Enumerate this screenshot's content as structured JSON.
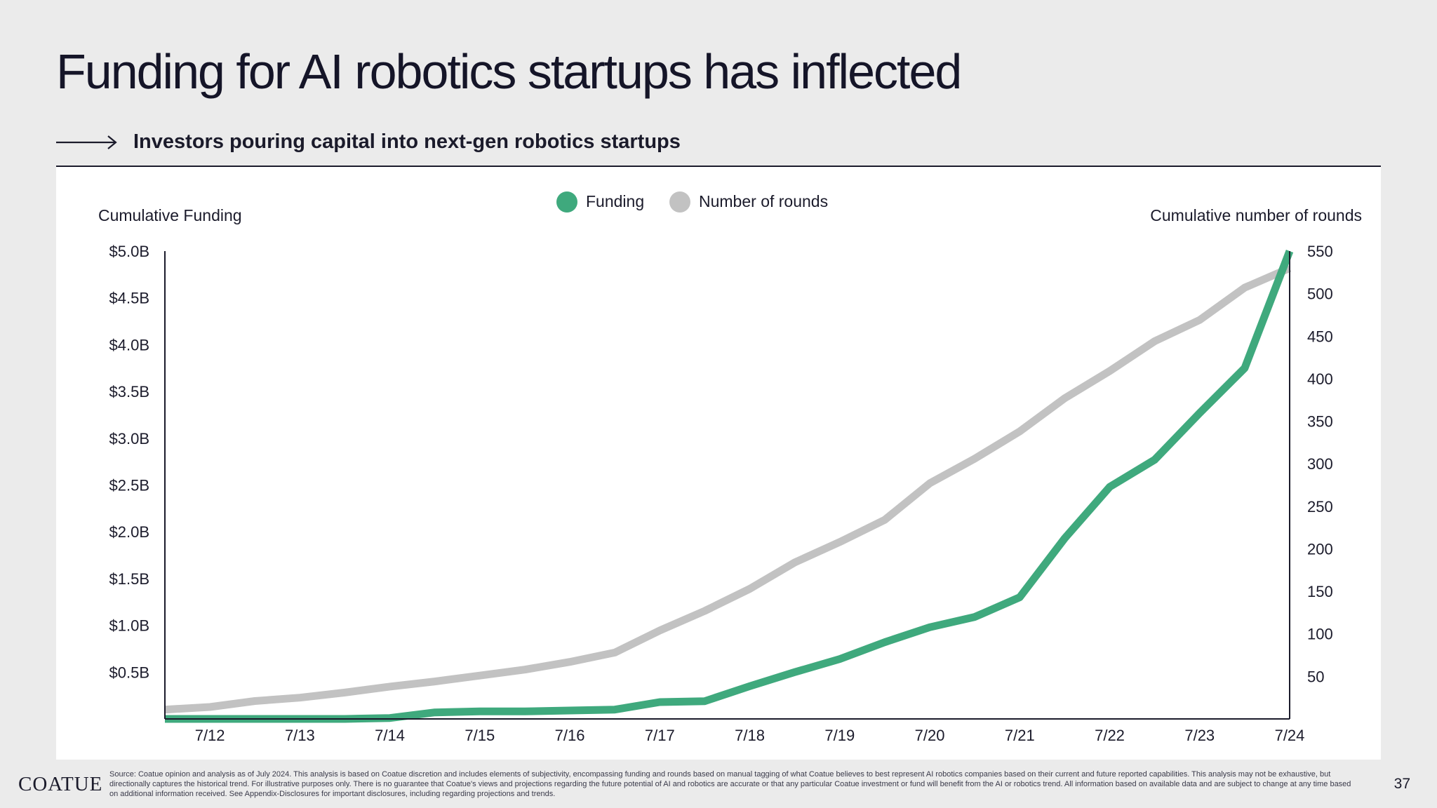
{
  "title": "Funding for AI robotics startups has inflected",
  "subtitle": "Investors pouring capital into next-gen robotics startups",
  "footer": {
    "logo": "COATUE",
    "source": "Source: Coatue opinion and analysis as of July 2024. This analysis is based on Coatue discretion and includes elements of subjectivity, encompassing funding and rounds based on manual tagging of what Coatue believes to best represent AI robotics companies based on their current and future reported capabilities. This analysis may not be exhaustive, but directionally captures the historical trend. For illustrative purposes only. There is no guarantee that Coatue's views and projections regarding the future potential of AI and robotics are accurate or that any particular Coatue investment or fund will benefit from the AI or robotics trend. All information based on available data and are subject to change at any time based on additional information received. See Appendix-Disclosures for important disclosures, including regarding projections and trends.",
    "page": "37"
  },
  "chart_data": {
    "type": "line",
    "title": "",
    "y_left_label": "Cumulative Funding",
    "y_right_label": "Cumulative number of rounds",
    "y_left_range": [
      0,
      5.0
    ],
    "y_right_range": [
      0,
      550
    ],
    "y_left_ticks": [
      0.5,
      1.0,
      1.5,
      2.0,
      2.5,
      3.0,
      3.5,
      4.0,
      4.5,
      5.0
    ],
    "y_left_tick_labels": [
      "$0.5B",
      "$1.0B",
      "$1.5B",
      "$2.0B",
      "$2.5B",
      "$3.0B",
      "$3.5B",
      "$4.0B",
      "$4.5B",
      "$5.0B"
    ],
    "y_right_ticks": [
      50,
      100,
      150,
      200,
      250,
      300,
      350,
      400,
      450,
      500,
      550
    ],
    "y_right_tick_labels": [
      "50",
      "100",
      "150",
      "200",
      "250",
      "300",
      "350",
      "400",
      "450",
      "500",
      "550"
    ],
    "x_tick_labels": [
      "7/12",
      "7/13",
      "7/14",
      "7/15",
      "7/16",
      "7/17",
      "7/18",
      "7/19",
      "7/20",
      "7/21",
      "7/22",
      "7/23",
      "7/24"
    ],
    "x_tick_values": [
      0,
      1,
      2,
      3,
      4,
      5,
      6,
      7,
      8,
      9,
      10,
      11,
      12
    ],
    "x": [
      -0.5,
      0,
      0.5,
      1,
      1.5,
      2,
      2.5,
      3,
      3.5,
      4,
      4.5,
      5,
      5.5,
      6,
      6.5,
      7,
      7.5,
      8,
      8.5,
      9,
      9.5,
      10,
      10.5,
      11,
      11.5,
      12
    ],
    "legend_position": "top-center",
    "series": [
      {
        "name": "Funding",
        "axis": "left",
        "unit": "$B",
        "color": "#3fa97d",
        "values": [
          0.0,
          0.0,
          0.0,
          0.0,
          0.0,
          0.01,
          0.07,
          0.08,
          0.08,
          0.09,
          0.1,
          0.18,
          0.19,
          0.35,
          0.5,
          0.64,
          0.82,
          0.98,
          1.09,
          1.3,
          1.93,
          2.48,
          2.77,
          3.27,
          3.75,
          5.0
        ]
      },
      {
        "name": "Number of rounds",
        "axis": "right",
        "unit": "rounds",
        "color": "#c2c2c2",
        "values": [
          11,
          14,
          21,
          25,
          31,
          38,
          44,
          51,
          58,
          67,
          78,
          104,
          127,
          153,
          184,
          208,
          234,
          277,
          306,
          338,
          377,
          409,
          444,
          469,
          507,
          530
        ]
      }
    ]
  }
}
